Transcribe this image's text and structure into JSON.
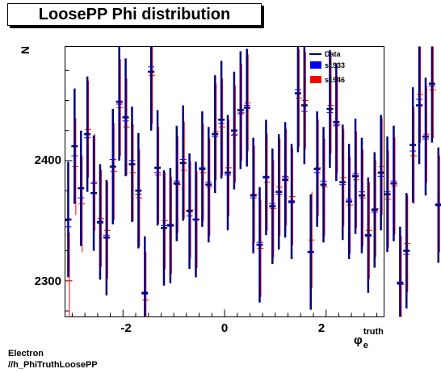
{
  "title": "LoosePP Phi distribution",
  "footer": {
    "line1": "Electron",
    "line2": "//h_PhiTruthLoosePP"
  },
  "colors": {
    "data": "#000080",
    "s1933": "#0000ff",
    "s1946": "#ff0000"
  },
  "chart_data": {
    "type": "scatter",
    "title": "LoosePP Phi distribution",
    "xlabel": "φ_e^truth",
    "ylabel": "N",
    "xlim": [
      -3.1416,
      3.1416
    ],
    "ylim": [
      2270,
      2495
    ],
    "x_ticks": [
      "-2",
      "0",
      "2"
    ],
    "y_ticks": [
      "2300",
      "2400"
    ],
    "legend": {
      "position": "top-right",
      "entries": [
        "Data",
        "s1933",
        "s1946"
      ]
    },
    "bin_edges_from": -3.1416,
    "bin_width": 0.1257,
    "series": [
      {
        "name": "Data",
        "style": "errorbar",
        "y": [
          2351,
          2412,
          2377,
          2422,
          2373,
          2349,
          2336,
          2395,
          2449,
          2436,
          2397,
          2375,
          2290,
          2474,
          2394,
          2344,
          2346,
          2381,
          2398,
          2358,
          2351,
          2393,
          2380,
          2422,
          2434,
          2390,
          2425,
          2442,
          2444,
          2371,
          2330,
          2386,
          2362,
          2374,
          2384,
          2366,
          2456,
          2446,
          2324,
          2393,
          2380,
          2443,
          2432,
          2382,
          2366,
          2387,
          2371,
          2338,
          2359,
          2390,
          2372,
          2381,
          2298,
          2325,
          2413,
          2446,
          2420,
          2464,
          2363,
          2463
        ],
        "err": [
          48,
          48,
          48,
          48,
          48,
          48,
          48,
          48,
          49,
          49,
          48,
          48,
          47,
          49,
          48,
          48,
          48,
          48,
          48,
          48,
          48,
          48,
          48,
          49,
          49,
          48,
          49,
          49,
          49,
          48,
          48,
          48,
          48,
          48,
          48,
          48,
          49,
          49,
          48,
          48,
          48,
          49,
          49,
          48,
          48,
          48,
          48,
          48,
          48,
          48,
          48,
          48,
          47,
          48,
          48,
          49,
          49,
          49,
          48,
          49
        ]
      },
      {
        "name": "s1933",
        "y": [
          2345,
          2404,
          2369,
          2419,
          2381,
          2348,
          2338,
          2401,
          2447,
          2433,
          2400,
          2372,
          2289,
          2478,
          2390,
          2346,
          2347,
          2383,
          2401,
          2354,
          2351,
          2394,
          2382,
          2420,
          2431,
          2388,
          2421,
          2439,
          2446,
          2369,
          2332,
          2387,
          2364,
          2372,
          2387,
          2365,
          2459,
          2441,
          2324,
          2390,
          2383,
          2440,
          2429,
          2380,
          2368,
          2389,
          2374,
          2337,
          2357,
          2387,
          2374,
          2383,
          2299,
          2322,
          2408,
          2451,
          2418,
          2462,
          2364,
          2466
        ]
      },
      {
        "name": "s1946",
        "y": [
          2300,
          2395,
          2364,
          2426,
          2382,
          2352,
          2342,
          2391,
          2444,
          2428,
          2390,
          2369,
          2284,
          2471,
          2388,
          2350,
          2346,
          2380,
          2392,
          2359,
          2351,
          2390,
          2378,
          2424,
          2428,
          2394,
          2422,
          2440,
          2448,
          2372,
          2327,
          2382,
          2360,
          2378,
          2386,
          2370,
          2452,
          2450,
          2334,
          2394,
          2378,
          2446,
          2430,
          2386,
          2363,
          2384,
          2369,
          2342,
          2360,
          2395,
          2368,
          2379,
          2297,
          2331,
          2404,
          2455,
          2422,
          2459,
          2364,
          2453
        ]
      }
    ]
  }
}
